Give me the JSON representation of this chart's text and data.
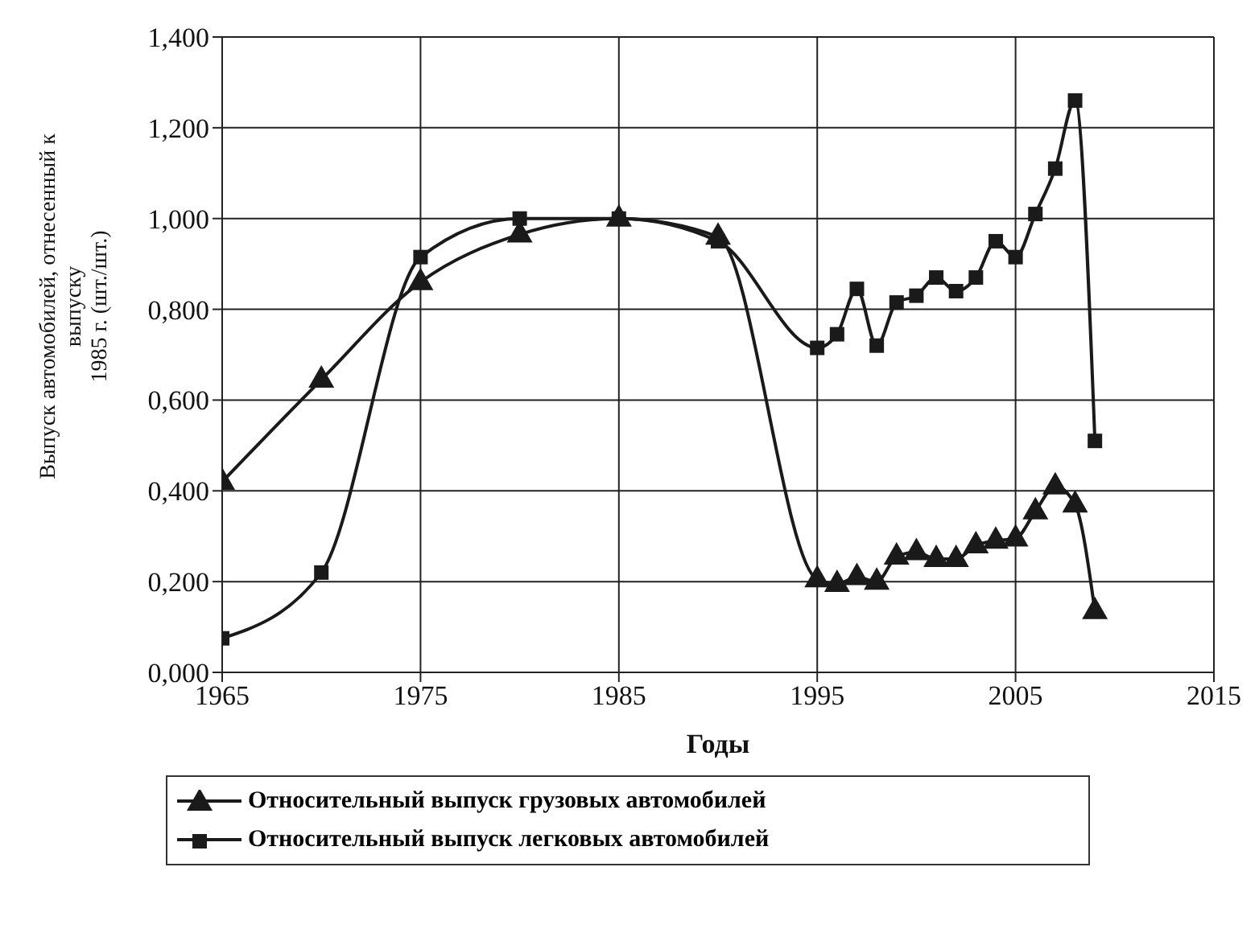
{
  "chart_data": {
    "type": "line",
    "xlabel": "Годы",
    "ylabel": "Выпуск автомобилей, отнесенный к\nвыпуску\n1985 г. (шт./шт.)",
    "x": [
      1965,
      1970,
      1975,
      1980,
      1985,
      1990,
      1995,
      1996,
      1997,
      1998,
      1999,
      2000,
      2001,
      2002,
      2003,
      2004,
      2005,
      2006,
      2007,
      2008,
      2009
    ],
    "series": [
      {
        "name": "Относительный выпуск грузовых автомобилей",
        "color": "#1a1a1a",
        "marker": "triangle",
        "values": [
          0.42,
          0.645,
          0.86,
          0.965,
          1.0,
          0.96,
          0.205,
          0.195,
          0.21,
          0.2,
          0.255,
          0.265,
          0.25,
          0.25,
          0.28,
          0.29,
          0.295,
          0.355,
          0.41,
          0.37,
          0.135
        ]
      },
      {
        "name": "Относительный выпуск легковых автомобилей",
        "color": "#1a1a1a",
        "marker": "square",
        "values": [
          0.075,
          0.22,
          0.915,
          1.0,
          1.0,
          0.95,
          0.715,
          0.745,
          0.845,
          0.72,
          0.815,
          0.83,
          0.87,
          0.84,
          0.87,
          0.95,
          0.915,
          1.01,
          1.11,
          1.26,
          0.51
        ]
      }
    ],
    "xlim": [
      1965,
      2015
    ],
    "xticks": [
      1965,
      1975,
      1985,
      1995,
      2005,
      2015
    ],
    "ylim": [
      0,
      1.4
    ],
    "yticks": [
      {
        "value": 0,
        "label": "0,000"
      },
      {
        "value": 0.2,
        "label": "0,200"
      },
      {
        "value": 0.4,
        "label": "0,400"
      },
      {
        "value": 0.6,
        "label": "0,600"
      },
      {
        "value": 0.8,
        "label": "0,800"
      },
      {
        "value": 1.0,
        "label": "1,000"
      },
      {
        "value": 1.2,
        "label": "1,200"
      },
      {
        "value": 1.4,
        "label": "1,400"
      }
    ],
    "grid": true,
    "legend": "bottom",
    "line_style": "solid"
  }
}
